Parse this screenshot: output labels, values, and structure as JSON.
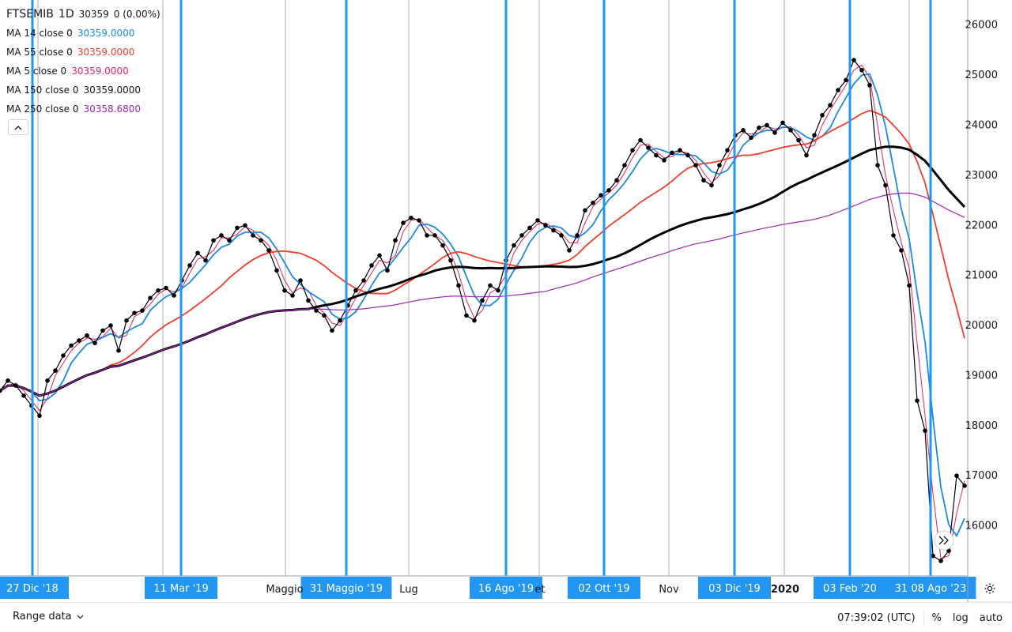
{
  "header": {
    "symbol": "FTSEMIB",
    "interval": "1D",
    "last": "30359",
    "change": "0 (0.00%)"
  },
  "indicators": [
    {
      "label": "MA 14 close 0",
      "value": "30359.0000",
      "color": "#1e88e5"
    },
    {
      "label": "MA 55 close 0",
      "value": "30359.0000",
      "color": "#f23d2d"
    },
    {
      "label": "MA 5 close 0",
      "value": "30359.0000",
      "color": "#e91e63"
    },
    {
      "label": "MA 150 close 0",
      "value": "30359.0000",
      "color": "#000000"
    },
    {
      "label": "MA 250 close 0",
      "value": "30358.6800",
      "color": "#9c27b0"
    }
  ],
  "chart_data": {
    "type": "line",
    "y_ticks": [
      16000,
      17000,
      18000,
      19000,
      20000,
      21000,
      22000,
      23000,
      24000,
      25000,
      26000
    ],
    "ylim": [
      15000,
      26500
    ],
    "x_labels": [
      "Maggio",
      "Lug",
      "et",
      "Nov",
      "2020"
    ],
    "marker_dates": [
      "27 Dic '18",
      "11 Mar '19",
      "31 Maggio '19",
      "16 Ago '19",
      "02 Ott '19",
      "03 Dic '19",
      "03 Feb '20",
      "31 08 Ago '23"
    ],
    "series": [
      {
        "name": "FTSEMIB",
        "color": "#000000",
        "x": [
          0,
          10,
          20,
          30,
          40,
          50,
          60,
          70,
          80,
          90,
          100,
          110,
          120,
          130,
          140,
          150,
          160,
          170,
          180,
          190,
          200,
          210,
          220,
          230,
          240,
          250,
          260,
          270,
          280,
          290,
          300,
          310,
          320,
          330,
          340,
          350,
          360,
          370,
          380,
          390,
          400,
          410,
          420,
          430,
          440,
          450,
          460,
          470,
          480,
          490,
          500,
          510,
          520,
          530,
          540,
          550,
          560,
          570,
          580,
          590,
          600,
          610,
          620,
          630,
          640,
          650,
          660,
          670,
          680,
          690,
          700,
          710,
          720,
          730,
          740,
          750,
          760,
          770,
          780,
          790,
          800,
          810,
          820,
          830,
          840,
          850,
          860,
          870,
          880,
          890,
          900,
          910,
          920,
          930,
          940,
          950,
          960,
          970,
          980,
          990,
          1000,
          1010,
          1020,
          1030,
          1040,
          1050,
          1060,
          1070,
          1080,
          1090,
          1100,
          1110,
          1120,
          1130,
          1140,
          1150,
          1160,
          1170,
          1180,
          1190,
          1200,
          1210,
          1220
        ],
        "values": [
          18700,
          18900,
          18800,
          18600,
          18400,
          18200,
          18900,
          19100,
          19400,
          19600,
          19700,
          19800,
          19650,
          19900,
          20000,
          19500,
          20100,
          20250,
          20300,
          20550,
          20700,
          20750,
          20600,
          20900,
          21200,
          21450,
          21300,
          21700,
          21800,
          21700,
          21950,
          22000,
          21800,
          21700,
          21500,
          21100,
          20700,
          20600,
          20900,
          20500,
          20300,
          20200,
          19900,
          20100,
          20400,
          20700,
          20900,
          21200,
          21400,
          21100,
          21700,
          22050,
          22150,
          22100,
          21800,
          21800,
          21600,
          21300,
          20800,
          20200,
          20100,
          20500,
          20800,
          20700,
          21300,
          21600,
          21800,
          21950,
          22100,
          22000,
          21900,
          21800,
          21500,
          21800,
          22300,
          22450,
          22600,
          22700,
          22900,
          23200,
          23500,
          23700,
          23550,
          23400,
          23300,
          23450,
          23500,
          23400,
          23200,
          22900,
          22800,
          23200,
          23500,
          23800,
          23900,
          23750,
          23950,
          24000,
          23850,
          24050,
          23900,
          23700,
          23400,
          23800,
          24200,
          24400,
          24700,
          24900,
          25300,
          25100,
          24800,
          23200,
          22800,
          21800,
          21500,
          20800,
          18500,
          17900,
          15400,
          15300,
          15500,
          17000,
          16800
        ]
      }
    ]
  },
  "time_axis": {
    "range_label": "Range data",
    "clock": "07:39:02 (UTC)",
    "percent": "%",
    "log": "log",
    "auto": "auto"
  },
  "colors": {
    "marker_line": "#2196f3",
    "grid_line": "#9e9e9e",
    "price": "#000000",
    "ma14": "#1e88e5",
    "ma55": "#f23d2d",
    "ma5": "#e91e63",
    "ma150": "#000000",
    "ma250": "#9c27b0"
  }
}
